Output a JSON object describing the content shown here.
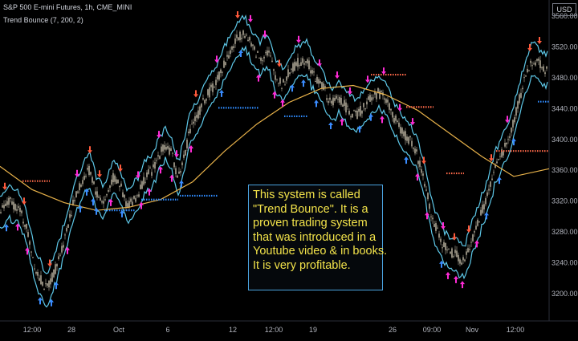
{
  "header": {
    "symbol_line": "S&P 500 E-mini Futures, 1h, CME_MINI",
    "indicator_line": "Trend Bounce (7, 200, 2)"
  },
  "currency_badge": "USD",
  "annotation": {
    "lines": [
      "This system is called",
      "\"Trend Bounce\". It is a",
      "proven trading system",
      "that was introduced in a",
      "Youtube video & in books.",
      "It is very profitable."
    ]
  },
  "colors": {
    "background": "#000000",
    "candle": "#e8e0c8",
    "band": "#5ec8e8",
    "moving_average": "#e8b24a",
    "buy_signal": "#ff2bd6",
    "sell_signal": "#ff5a3c",
    "stop_line_long": "#2f8cff",
    "stop_line_short": "#ff6a4a",
    "note_border": "#4aa3df",
    "note_text": "#f3e34a"
  },
  "chart_data": {
    "type": "line",
    "title": "S&P 500 E-mini Futures, 1h, CME_MINI",
    "indicator": "Trend Bounce (7, 200, 2)",
    "x_ticks": [
      "12:00",
      "28",
      "Oct",
      "6",
      "12",
      "12:00",
      "19",
      "26",
      "09:00",
      "Nov",
      "12:00"
    ],
    "y_ticks": [
      3200,
      3240,
      3280,
      3320,
      3360,
      3400,
      3440,
      3480,
      3520,
      3560
    ],
    "ylim": [
      3188,
      3566
    ],
    "grid": false,
    "price_anchors": [
      [
        0,
        3305
      ],
      [
        12,
        3320
      ],
      [
        22,
        3312
      ],
      [
        32,
        3290
      ],
      [
        45,
        3230
      ],
      [
        58,
        3205
      ],
      [
        70,
        3235
      ],
      [
        80,
        3270
      ],
      [
        92,
        3320
      ],
      [
        104,
        3350
      ],
      [
        112,
        3360
      ],
      [
        120,
        3330
      ],
      [
        130,
        3318
      ],
      [
        140,
        3350
      ],
      [
        148,
        3345
      ],
      [
        158,
        3315
      ],
      [
        170,
        3325
      ],
      [
        180,
        3350
      ],
      [
        190,
        3360
      ],
      [
        198,
        3380
      ],
      [
        206,
        3395
      ],
      [
        214,
        3380
      ],
      [
        222,
        3350
      ],
      [
        230,
        3380
      ],
      [
        238,
        3420
      ],
      [
        246,
        3430
      ],
      [
        256,
        3455
      ],
      [
        266,
        3468
      ],
      [
        276,
        3490
      ],
      [
        286,
        3512
      ],
      [
        296,
        3532
      ],
      [
        304,
        3540
      ],
      [
        314,
        3520
      ],
      [
        324,
        3505
      ],
      [
        334,
        3515
      ],
      [
        344,
        3480
      ],
      [
        352,
        3470
      ],
      [
        362,
        3490
      ],
      [
        372,
        3500
      ],
      [
        382,
        3505
      ],
      [
        392,
        3480
      ],
      [
        402,
        3470
      ],
      [
        412,
        3445
      ],
      [
        422,
        3455
      ],
      [
        432,
        3440
      ],
      [
        442,
        3430
      ],
      [
        452,
        3440
      ],
      [
        462,
        3455
      ],
      [
        472,
        3460
      ],
      [
        480,
        3455
      ],
      [
        490,
        3430
      ],
      [
        500,
        3410
      ],
      [
        510,
        3400
      ],
      [
        518,
        3385
      ],
      [
        528,
        3350
      ],
      [
        538,
        3300
      ],
      [
        548,
        3270
      ],
      [
        558,
        3255
      ],
      [
        568,
        3250
      ],
      [
        578,
        3240
      ],
      [
        588,
        3270
      ],
      [
        598,
        3300
      ],
      [
        608,
        3330
      ],
      [
        616,
        3360
      ],
      [
        624,
        3380
      ],
      [
        634,
        3400
      ],
      [
        644,
        3440
      ],
      [
        654,
        3480
      ],
      [
        664,
        3505
      ],
      [
        674,
        3495
      ],
      [
        682,
        3490
      ]
    ],
    "moving_average": [
      [
        0,
        3365
      ],
      [
        40,
        3335
      ],
      [
        80,
        3318
      ],
      [
        120,
        3308
      ],
      [
        160,
        3312
      ],
      [
        200,
        3322
      ],
      [
        240,
        3345
      ],
      [
        280,
        3385
      ],
      [
        320,
        3420
      ],
      [
        360,
        3448
      ],
      [
        400,
        3466
      ],
      [
        440,
        3470
      ],
      [
        480,
        3458
      ],
      [
        520,
        3438
      ],
      [
        560,
        3408
      ],
      [
        600,
        3378
      ],
      [
        640,
        3352
      ],
      [
        684,
        3362
      ]
    ],
    "band_offset": 18,
    "stop_levels_long": [
      {
        "x": [
          130,
          168
        ],
        "y": 3308
      },
      {
        "x": [
          176,
          222
        ],
        "y": 3322
      },
      {
        "x": [
          224,
          272
        ],
        "y": 3327
      },
      {
        "x": [
          272,
          322
        ],
        "y": 3441
      },
      {
        "x": [
          354,
          384
        ],
        "y": 3430
      },
      {
        "x": [
          670,
          684
        ],
        "y": 3449
      }
    ],
    "stop_levels_short": [
      {
        "x": [
          28,
          62
        ],
        "y": 3346
      },
      {
        "x": [
          462,
          506
        ],
        "y": 3484
      },
      {
        "x": [
          506,
          540
        ],
        "y": 3442
      },
      {
        "x": [
          556,
          578
        ],
        "y": 3356
      },
      {
        "x": [
          618,
          684
        ],
        "y": 3385
      }
    ]
  }
}
